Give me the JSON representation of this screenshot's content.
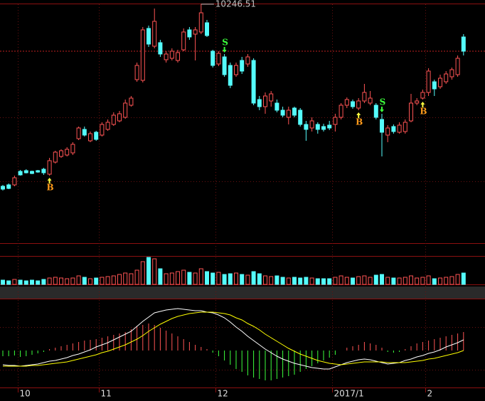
{
  "chart_data": {
    "type": "candlestick",
    "annotation": "10246.51",
    "categories": [
      null,
      null,
      null,
      "10",
      null,
      null,
      null,
      null,
      null,
      null,
      null,
      null,
      null,
      null,
      null,
      null,
      null,
      "11",
      null,
      null,
      null,
      null,
      null,
      null,
      null,
      null,
      null,
      null,
      null,
      null,
      null,
      null,
      null,
      null,
      null,
      null,
      null,
      "12",
      null,
      null,
      null,
      null,
      null,
      null,
      null,
      null,
      null,
      null,
      null,
      null,
      null,
      null,
      null,
      null,
      null,
      null,
      null,
      "2017/1",
      null,
      null,
      null,
      null,
      null,
      null,
      null,
      null,
      null,
      null,
      null,
      null,
      null,
      null,
      null,
      "2",
      null,
      null,
      null,
      null,
      null,
      null
    ],
    "open": [
      9222,
      9230,
      9230,
      9306,
      9310,
      9306,
      9310,
      9318,
      9290,
      9358,
      9390,
      9398,
      9410,
      9490,
      9542,
      9478,
      9526,
      9510,
      9542,
      9570,
      9590,
      9610,
      9678,
      9822,
      9818,
      10110,
      10010,
      10030,
      9934,
      9942,
      9930,
      9990,
      10102,
      10078,
      10090,
      10142,
      9982,
      9910,
      9950,
      9902,
      9850,
      9930,
      9910,
      9930,
      9710,
      9670,
      9702,
      9690,
      9650,
      9610,
      9662,
      9650,
      9570,
      9550,
      9570,
      9558,
      9566,
      9570,
      9610,
      9678,
      9698,
      9662,
      9702,
      9690,
      9678,
      9598,
      9510,
      9558,
      9526,
      9530,
      9590,
      9690,
      9718,
      9750,
      9810,
      9782,
      9810,
      9838,
      9850,
      10062
    ],
    "high": [
      9230,
      9238,
      9282,
      9314,
      9318,
      9310,
      9314,
      9326,
      9382,
      9422,
      9430,
      9442,
      9470,
      9558,
      9558,
      9530,
      9534,
      9582,
      9598,
      9638,
      9646,
      9710,
      9730,
      9918,
      10118,
      10126,
      10222,
      10046,
      9982,
      9998,
      9990,
      10110,
      10118,
      10118,
      10246.51,
      10158,
      9990,
      9982,
      9966,
      9918,
      9918,
      9950,
      9966,
      9942,
      9730,
      9750,
      9758,
      9710,
      9670,
      9670,
      9670,
      9662,
      9590,
      9610,
      9582,
      9574,
      9590,
      9630,
      9690,
      9722,
      9710,
      9718,
      9798,
      9758,
      9690,
      9630,
      9566,
      9570,
      9582,
      9598,
      9742,
      9718,
      9766,
      9886,
      9822,
      9850,
      9870,
      9890,
      9958,
      10078
    ],
    "low": [
      9198,
      9206,
      9222,
      9282,
      9294,
      9290,
      9298,
      9286,
      9282,
      9350,
      9382,
      9390,
      9398,
      9482,
      9502,
      9470,
      9478,
      9502,
      9534,
      9562,
      9582,
      9602,
      9670,
      9810,
      9806,
      10006,
      9998,
      9950,
      9918,
      9930,
      9918,
      9982,
      10046,
      9930,
      10078,
      10062,
      9890,
      9898,
      9838,
      9774,
      9838,
      9854,
      9894,
      9678,
      9650,
      9630,
      9670,
      9638,
      9610,
      9570,
      9610,
      9558,
      9478,
      9530,
      9518,
      9530,
      9538,
      9530,
      9598,
      9662,
      9658,
      9650,
      9690,
      9678,
      9598,
      9390,
      9470,
      9518,
      9518,
      9518,
      9582,
      9678,
      9710,
      9730,
      9730,
      9770,
      9798,
      9822,
      9838,
      9958
    ],
    "close": [
      9206,
      9210,
      9270,
      9286,
      9298,
      9294,
      9302,
      9298,
      9366,
      9414,
      9422,
      9430,
      9458,
      9550,
      9510,
      9518,
      9486,
      9570,
      9582,
      9622,
      9630,
      9690,
      9718,
      9902,
      10102,
      10022,
      10150,
      9966,
      9966,
      9982,
      9974,
      10090,
      10062,
      10102,
      10198,
      10070,
      9902,
      9970,
      9850,
      9790,
      9902,
      9870,
      9950,
      9690,
      9670,
      9730,
      9742,
      9650,
      9622,
      9650,
      9622,
      9570,
      9542,
      9590,
      9542,
      9542,
      9550,
      9610,
      9678,
      9710,
      9670,
      9702,
      9750,
      9718,
      9610,
      9526,
      9550,
      9530,
      9566,
      9582,
      9690,
      9702,
      9750,
      9870,
      9770,
      9830,
      9854,
      9878,
      9942,
      9982
    ],
    "signals": [
      null,
      null,
      null,
      null,
      null,
      null,
      null,
      null,
      "B",
      null,
      null,
      null,
      null,
      null,
      null,
      null,
      null,
      null,
      null,
      null,
      null,
      null,
      null,
      null,
      null,
      null,
      null,
      null,
      null,
      null,
      null,
      null,
      null,
      null,
      null,
      null,
      null,
      null,
      "S",
      null,
      null,
      null,
      null,
      null,
      null,
      null,
      null,
      null,
      null,
      null,
      null,
      null,
      null,
      null,
      null,
      null,
      null,
      null,
      null,
      null,
      null,
      "B",
      null,
      null,
      null,
      "S",
      null,
      null,
      null,
      null,
      null,
      null,
      "B",
      null,
      null,
      null,
      null,
      null,
      null,
      null
    ],
    "ylim": [
      8902,
      10270
    ],
    "up_color": "#ff5454",
    "down_color": "#54fcfc",
    "buy_color": "#ff9a1a",
    "sell_color": "#3cff3c",
    "volume": {
      "ylim": [
        0,
        55
      ],
      "values": [
        6,
        5,
        7,
        6,
        5,
        6,
        5,
        7,
        9,
        10,
        9,
        8,
        9,
        12,
        10,
        8,
        9,
        10,
        11,
        12,
        14,
        16,
        15,
        20,
        32,
        38,
        36,
        22,
        15,
        16,
        18,
        20,
        17,
        16,
        22,
        18,
        16,
        17,
        14,
        15,
        16,
        14,
        13,
        18,
        15,
        12,
        11,
        12,
        10,
        9,
        10,
        9,
        10,
        9,
        8,
        8,
        8,
        10,
        12,
        10,
        9,
        11,
        12,
        10,
        13,
        14,
        10,
        9,
        9,
        10,
        12,
        9,
        10,
        12,
        8,
        9,
        10,
        11,
        14,
        16
      ]
    },
    "macd": {
      "ylim": [
        -52,
        71
      ],
      "histogram": {
        "up_color": "#ff5454",
        "down_color": "#3cff3c",
        "values": [
          -8,
          -8,
          -7,
          -9,
          -8,
          -6,
          -4,
          -2,
          2,
          4,
          6,
          8,
          10,
          12,
          14,
          15,
          16,
          18,
          20,
          22,
          24,
          26,
          30,
          34,
          36,
          38,
          36,
          32,
          28,
          24,
          20,
          16,
          12,
          8,
          5,
          2,
          -3,
          -8,
          -14,
          -20,
          -26,
          -30,
          -35,
          -38,
          -40,
          -42,
          -42,
          -40,
          -38,
          -36,
          -34,
          -30,
          -26,
          -22,
          -18,
          -14,
          -10,
          -6,
          0,
          4,
          6,
          8,
          12,
          10,
          8,
          4,
          -2,
          -3,
          -2,
          2,
          6,
          10,
          12,
          14,
          16,
          18,
          20,
          22,
          24,
          26
        ]
      },
      "series": [
        {
          "color": "#ffffff",
          "values": [
            -20,
            -21,
            -21,
            -22,
            -21,
            -20,
            -19,
            -17,
            -15,
            -14,
            -12,
            -10,
            -7,
            -5,
            -2,
            1,
            5,
            8,
            11,
            15,
            19,
            23,
            27,
            34,
            41,
            47,
            53,
            55,
            57,
            58,
            59,
            58,
            57,
            56,
            56,
            54,
            53,
            50,
            46,
            40,
            33,
            27,
            20,
            14,
            8,
            2,
            -3,
            -8,
            -12,
            -15,
            -18,
            -20,
            -22,
            -24,
            -25,
            -26,
            -26,
            -23,
            -20,
            -17,
            -15,
            -13,
            -12,
            -13,
            -15,
            -17,
            -19,
            -18,
            -17,
            -14,
            -12,
            -9,
            -7,
            -4,
            -2,
            1,
            5,
            8,
            11,
            15
          ]
        },
        {
          "color": "#ffff00",
          "values": [
            -22,
            -22,
            -22,
            -22,
            -22,
            -21,
            -21,
            -20,
            -19,
            -18,
            -17,
            -16,
            -14,
            -12,
            -10,
            -8,
            -6,
            -3,
            -1,
            2,
            5,
            8,
            12,
            16,
            21,
            27,
            32,
            37,
            41,
            45,
            48,
            50,
            52,
            53,
            54,
            54,
            54,
            53,
            52,
            50,
            46,
            43,
            38,
            34,
            29,
            23,
            18,
            13,
            8,
            3,
            -1,
            -5,
            -8,
            -11,
            -14,
            -16,
            -18,
            -19,
            -20,
            -19,
            -18,
            -17,
            -16,
            -16,
            -16,
            -16,
            -17,
            -17,
            -17,
            -17,
            -16,
            -15,
            -14,
            -12,
            -11,
            -9,
            -7,
            -5,
            -3,
            0
          ]
        }
      ]
    }
  }
}
